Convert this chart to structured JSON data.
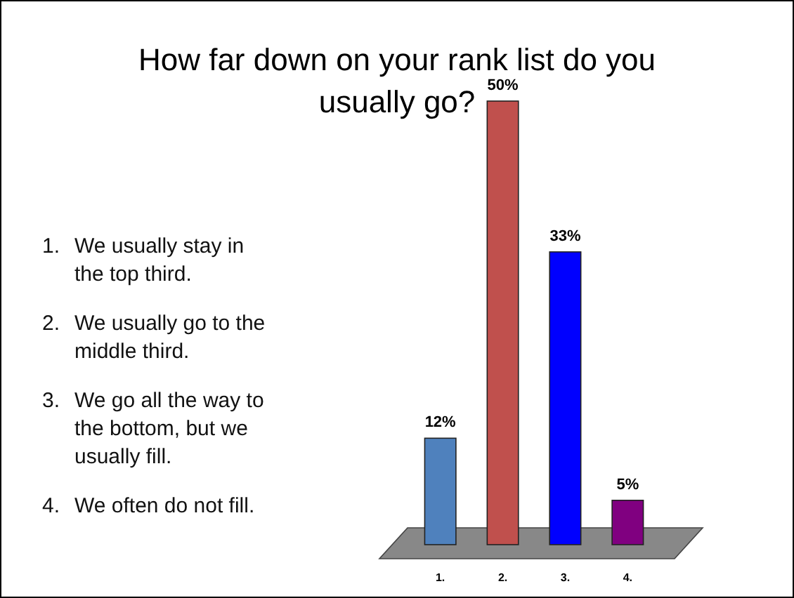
{
  "chart_data": {
    "type": "bar",
    "title": "How far down on your rank list do you usually go?",
    "categories": [
      "1.",
      "2.",
      "3.",
      "4."
    ],
    "values": [
      12,
      50,
      33,
      5
    ],
    "colors": [
      "#4f81bd",
      "#c0504d",
      "#0000ff",
      "#800080"
    ],
    "value_labels": [
      "12%",
      "50%",
      "33%",
      "5%"
    ],
    "annotations": [
      "1. We usually stay in the top third.",
      "2. We usually go to the middle third.",
      "3. We go all the way to the bottom, but we usually fill.",
      "4. We often do not fill."
    ]
  }
}
